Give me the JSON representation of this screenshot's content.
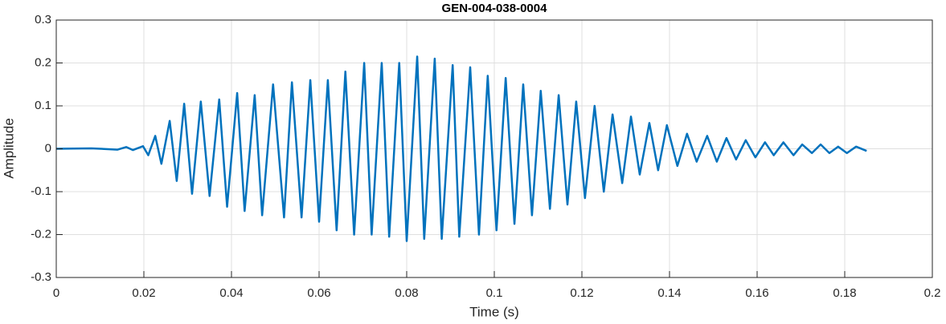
{
  "chart_data": {
    "type": "line",
    "title": "GEN-004-038-0004",
    "x_label": "Time (s)",
    "y_label": "Amplitude",
    "xlim": [
      0,
      0.2
    ],
    "xticks": [
      0,
      0.02,
      0.04,
      0.06,
      0.08,
      0.1,
      0.12,
      0.14,
      0.16,
      0.18,
      0.2
    ],
    "ylim": [
      -0.3,
      0.3
    ],
    "yticks": [
      -0.3,
      -0.2,
      -0.1,
      0,
      0.1,
      0.2,
      0.3
    ],
    "grid": true,
    "x": [
      0,
      0.008,
      0.014,
      0.016,
      0.0175,
      0.0198,
      0.021,
      0.0226,
      0.024,
      0.0259,
      0.0275,
      0.0292,
      0.031,
      0.033,
      0.035,
      0.0372,
      0.039,
      0.0413,
      0.043,
      0.0453,
      0.047,
      0.0495,
      0.052,
      0.0538,
      0.056,
      0.058,
      0.06,
      0.062,
      0.064,
      0.066,
      0.068,
      0.0703,
      0.072,
      0.0743,
      0.076,
      0.0783,
      0.08,
      0.0824,
      0.084,
      0.0864,
      0.088,
      0.0905,
      0.092,
      0.0945,
      0.0965,
      0.0985,
      0.1005,
      0.1026,
      0.1046,
      0.1066,
      0.1086,
      0.1106,
      0.1127,
      0.1147,
      0.1167,
      0.1187,
      0.1207,
      0.1229,
      0.125,
      0.127,
      0.1292,
      0.1312,
      0.1332,
      0.1354,
      0.1374,
      0.1394,
      0.1418,
      0.144,
      0.1462,
      0.1486,
      0.1508,
      0.153,
      0.1552,
      0.1574,
      0.1596,
      0.1618,
      0.1638,
      0.166,
      0.1683,
      0.1703,
      0.1725,
      0.1745,
      0.1765,
      0.1785,
      0.1805,
      0.1826,
      0.185
    ],
    "series": [
      {
        "name": "Amplitude",
        "color": "#0072BD",
        "values": [
          0,
          0.001,
          -0.002,
          0.004,
          -0.003,
          0.006,
          -0.015,
          0.03,
          -0.035,
          0.065,
          -0.075,
          0.105,
          -0.105,
          0.11,
          -0.11,
          0.115,
          -0.135,
          0.13,
          -0.145,
          0.125,
          -0.155,
          0.15,
          -0.16,
          0.155,
          -0.16,
          0.16,
          -0.17,
          0.16,
          -0.19,
          0.18,
          -0.2,
          0.2,
          -0.2,
          0.2,
          -0.205,
          0.2,
          -0.215,
          0.215,
          -0.21,
          0.21,
          -0.21,
          0.195,
          -0.205,
          0.19,
          -0.2,
          0.17,
          -0.19,
          0.165,
          -0.175,
          0.15,
          -0.155,
          0.135,
          -0.14,
          0.125,
          -0.13,
          0.11,
          -0.115,
          0.1,
          -0.1,
          0.08,
          -0.08,
          0.075,
          -0.06,
          0.06,
          -0.05,
          0.055,
          -0.04,
          0.035,
          -0.03,
          0.03,
          -0.03,
          0.025,
          -0.025,
          0.02,
          -0.02,
          0.015,
          -0.015,
          0.015,
          -0.015,
          0.01,
          -0.01,
          0.01,
          -0.01,
          0.005,
          -0.01,
          0.005,
          -0.005
        ]
      }
    ]
  }
}
